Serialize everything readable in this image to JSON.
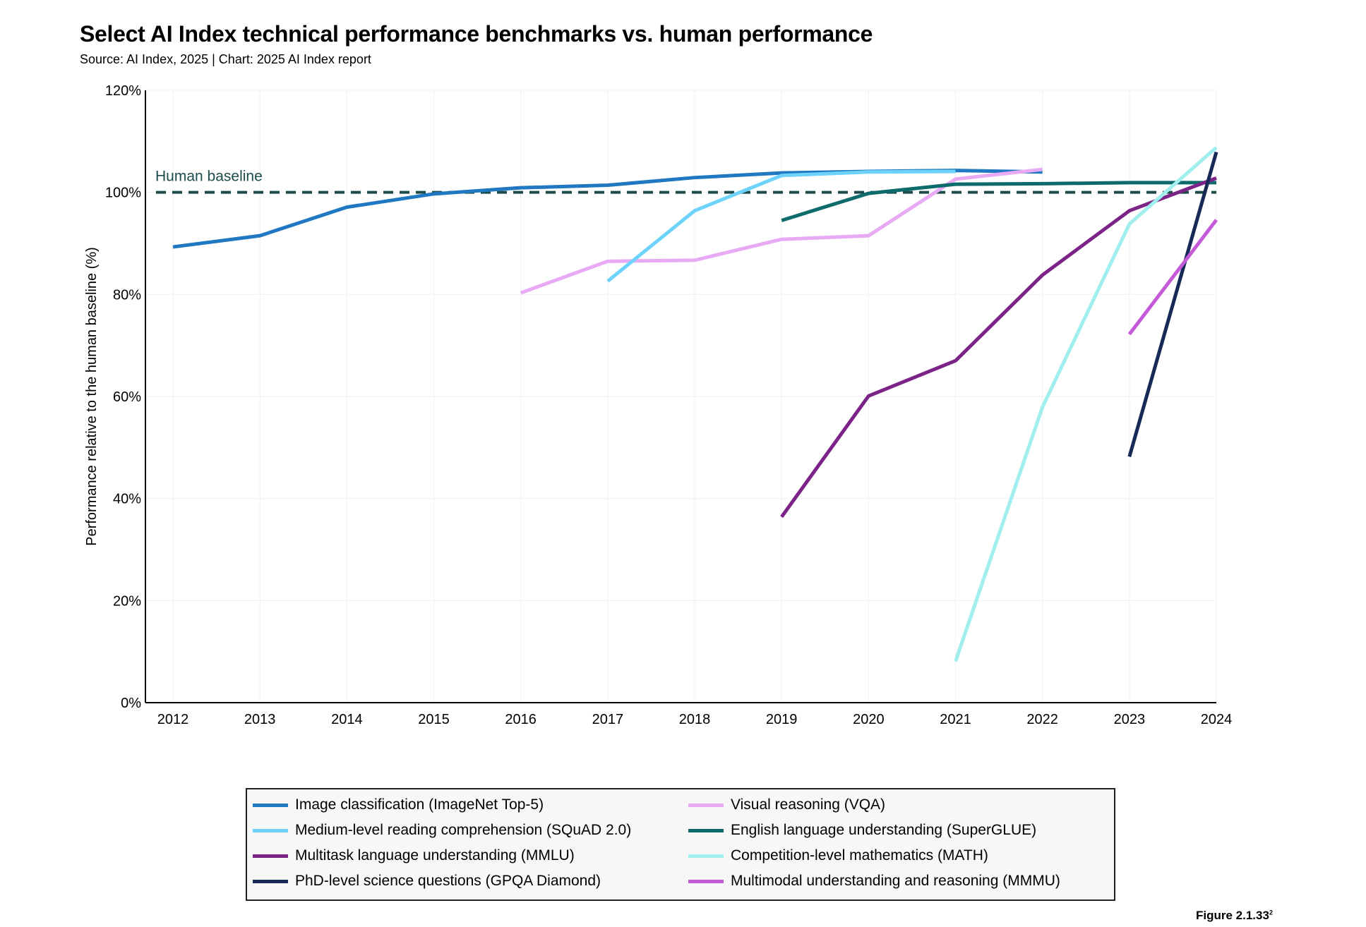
{
  "title": "Select AI Index technical performance benchmarks vs. human performance",
  "subtitle": "Source: AI Index, 2025 | Chart: 2025 AI Index report",
  "figure_label": "Figure 2.1.33",
  "figure_sup": "2",
  "chart_data": {
    "type": "line",
    "xlabel": "",
    "ylabel": "Performance relative to the human baseline (%)",
    "x": [
      2012,
      2013,
      2014,
      2015,
      2016,
      2017,
      2018,
      2019,
      2020,
      2021,
      2022,
      2023,
      2024
    ],
    "xlim": [
      2011.7,
      2024
    ],
    "ylim": [
      0,
      120
    ],
    "yticks": [
      "0%",
      "20%",
      "40%",
      "60%",
      "80%",
      "100%",
      "120%"
    ],
    "grid": true,
    "legend_position": "bottom",
    "reference_line": {
      "label": "Human baseline",
      "value": 100,
      "color": "#1d4b4b",
      "style": "dashed"
    },
    "series": [
      {
        "name": "Image classification (ImageNet Top-5)",
        "color": "#1f78c1",
        "points": [
          [
            2012,
            89.3
          ],
          [
            2013,
            91.5
          ],
          [
            2014,
            97.1
          ],
          [
            2015,
            99.7
          ],
          [
            2016,
            100.9
          ],
          [
            2017,
            101.4
          ],
          [
            2018,
            102.9
          ],
          [
            2019,
            103.8
          ],
          [
            2020,
            104.1
          ],
          [
            2021,
            104.3
          ],
          [
            2022,
            104.0
          ]
        ]
      },
      {
        "name": "Visual reasoning (VQA)",
        "color": "#e8aaf5",
        "points": [
          [
            2016,
            80.3
          ],
          [
            2017,
            86.5
          ],
          [
            2018,
            86.7
          ],
          [
            2019,
            90.8
          ],
          [
            2020,
            91.5
          ],
          [
            2021,
            102.6
          ],
          [
            2022,
            104.5
          ]
        ]
      },
      {
        "name": "Medium-level reading comprehension (SQuAD 2.0)",
        "color": "#6dd3fb",
        "points": [
          [
            2017,
            82.6
          ],
          [
            2018,
            96.4
          ],
          [
            2019,
            103.3
          ],
          [
            2020,
            104.0
          ],
          [
            2021,
            104.1
          ]
        ]
      },
      {
        "name": "English language understanding (SuperGLUE)",
        "color": "#0e6b6b",
        "points": [
          [
            2019,
            94.5
          ],
          [
            2020,
            99.8
          ],
          [
            2021,
            101.6
          ],
          [
            2022,
            101.7
          ],
          [
            2023,
            101.9
          ],
          [
            2024,
            101.9
          ]
        ]
      },
      {
        "name": "Multitask language understanding (MMLU)",
        "color": "#7c2388",
        "points": [
          [
            2019,
            36.4
          ],
          [
            2020,
            60.1
          ],
          [
            2021,
            67.0
          ],
          [
            2022,
            83.8
          ],
          [
            2023,
            96.4
          ],
          [
            2024,
            102.8
          ]
        ]
      },
      {
        "name": "Competition-level mathematics (MATH)",
        "color": "#a0eeee",
        "points": [
          [
            2021,
            8.1
          ],
          [
            2022,
            57.9
          ],
          [
            2023,
            93.8
          ],
          [
            2024,
            108.8
          ]
        ]
      },
      {
        "name": "PhD-level science questions (GPQA Diamond)",
        "color": "#172a57",
        "points": [
          [
            2023,
            48.2
          ],
          [
            2024,
            107.9
          ]
        ]
      },
      {
        "name": "Multimodal understanding and reasoning (MMMU)",
        "color": "#c55ad9",
        "points": [
          [
            2023,
            72.2
          ],
          [
            2024,
            94.6
          ]
        ]
      }
    ]
  }
}
